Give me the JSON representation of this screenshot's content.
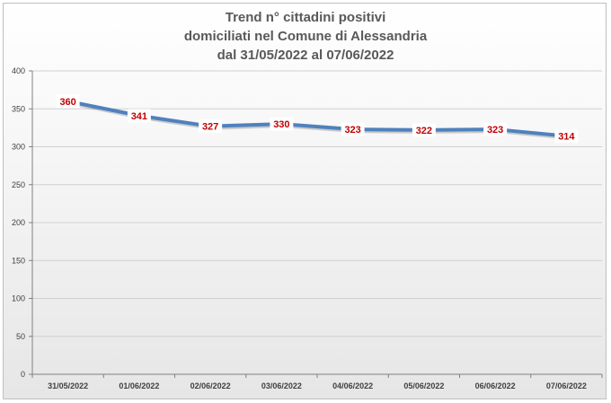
{
  "chart_data": {
    "type": "line",
    "title_lines": [
      "Trend n° cittadini positivi",
      "domiciliati nel Comune di Alessandria",
      "dal 31/05/2022 al 07/06/2022"
    ],
    "categories": [
      "31/05/2022",
      "01/06/2022",
      "02/06/2022",
      "03/06/2022",
      "04/06/2022",
      "05/06/2022",
      "06/06/2022",
      "07/06/2022"
    ],
    "values": [
      360,
      341,
      327,
      330,
      323,
      322,
      323,
      314
    ],
    "ylim": [
      0,
      400
    ],
    "yticks": [
      0,
      50,
      100,
      150,
      200,
      250,
      300,
      350,
      400
    ],
    "grid": true,
    "legend": "none",
    "line_color": "#4f81bd",
    "label_color": "#c00000"
  }
}
